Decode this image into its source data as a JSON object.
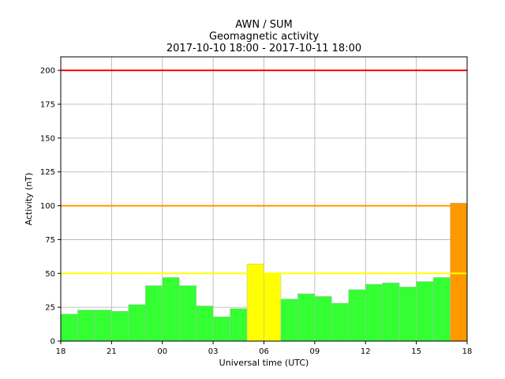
{
  "chart_data": {
    "type": "bar",
    "title": "AWN / SUM",
    "subtitle": "Geomagnetic activity",
    "date_range": "2017-10-10 18:00 - 2017-10-11 18:00",
    "xlabel": "Universal time (UTC)",
    "ylabel": "Activity (nT)",
    "ylim": [
      0,
      210
    ],
    "yticks": [
      0,
      25,
      50,
      75,
      100,
      125,
      150,
      175,
      200
    ],
    "xlim": [
      0,
      24
    ],
    "xticks": [
      {
        "hour": 0,
        "label": "18"
      },
      {
        "hour": 3,
        "label": "21"
      },
      {
        "hour": 6,
        "label": "00"
      },
      {
        "hour": 9,
        "label": "03"
      },
      {
        "hour": 12,
        "label": "06"
      },
      {
        "hour": 15,
        "label": "09"
      },
      {
        "hour": 18,
        "label": "12"
      },
      {
        "hour": 21,
        "label": "15"
      },
      {
        "hour": 24,
        "label": "18"
      }
    ],
    "grid": true,
    "values": [
      20,
      23,
      23,
      22,
      27,
      41,
      47,
      41,
      26,
      18,
      24,
      57,
      50,
      31,
      35,
      33,
      28,
      38,
      42,
      43,
      40,
      44,
      47,
      102
    ],
    "bar_colors": [
      "#33ff33",
      "#33ff33",
      "#33ff33",
      "#33ff33",
      "#33ff33",
      "#33ff33",
      "#33ff33",
      "#33ff33",
      "#33ff33",
      "#33ff33",
      "#33ff33",
      "#ffff00",
      "#ffff00",
      "#33ff33",
      "#33ff33",
      "#33ff33",
      "#33ff33",
      "#33ff33",
      "#33ff33",
      "#33ff33",
      "#33ff33",
      "#33ff33",
      "#33ff33",
      "#ff9900"
    ],
    "thresholds": [
      {
        "value": 50,
        "color": "#ffff00"
      },
      {
        "value": 100,
        "color": "#ff9900"
      },
      {
        "value": 200,
        "color": "#ff0000"
      }
    ]
  }
}
